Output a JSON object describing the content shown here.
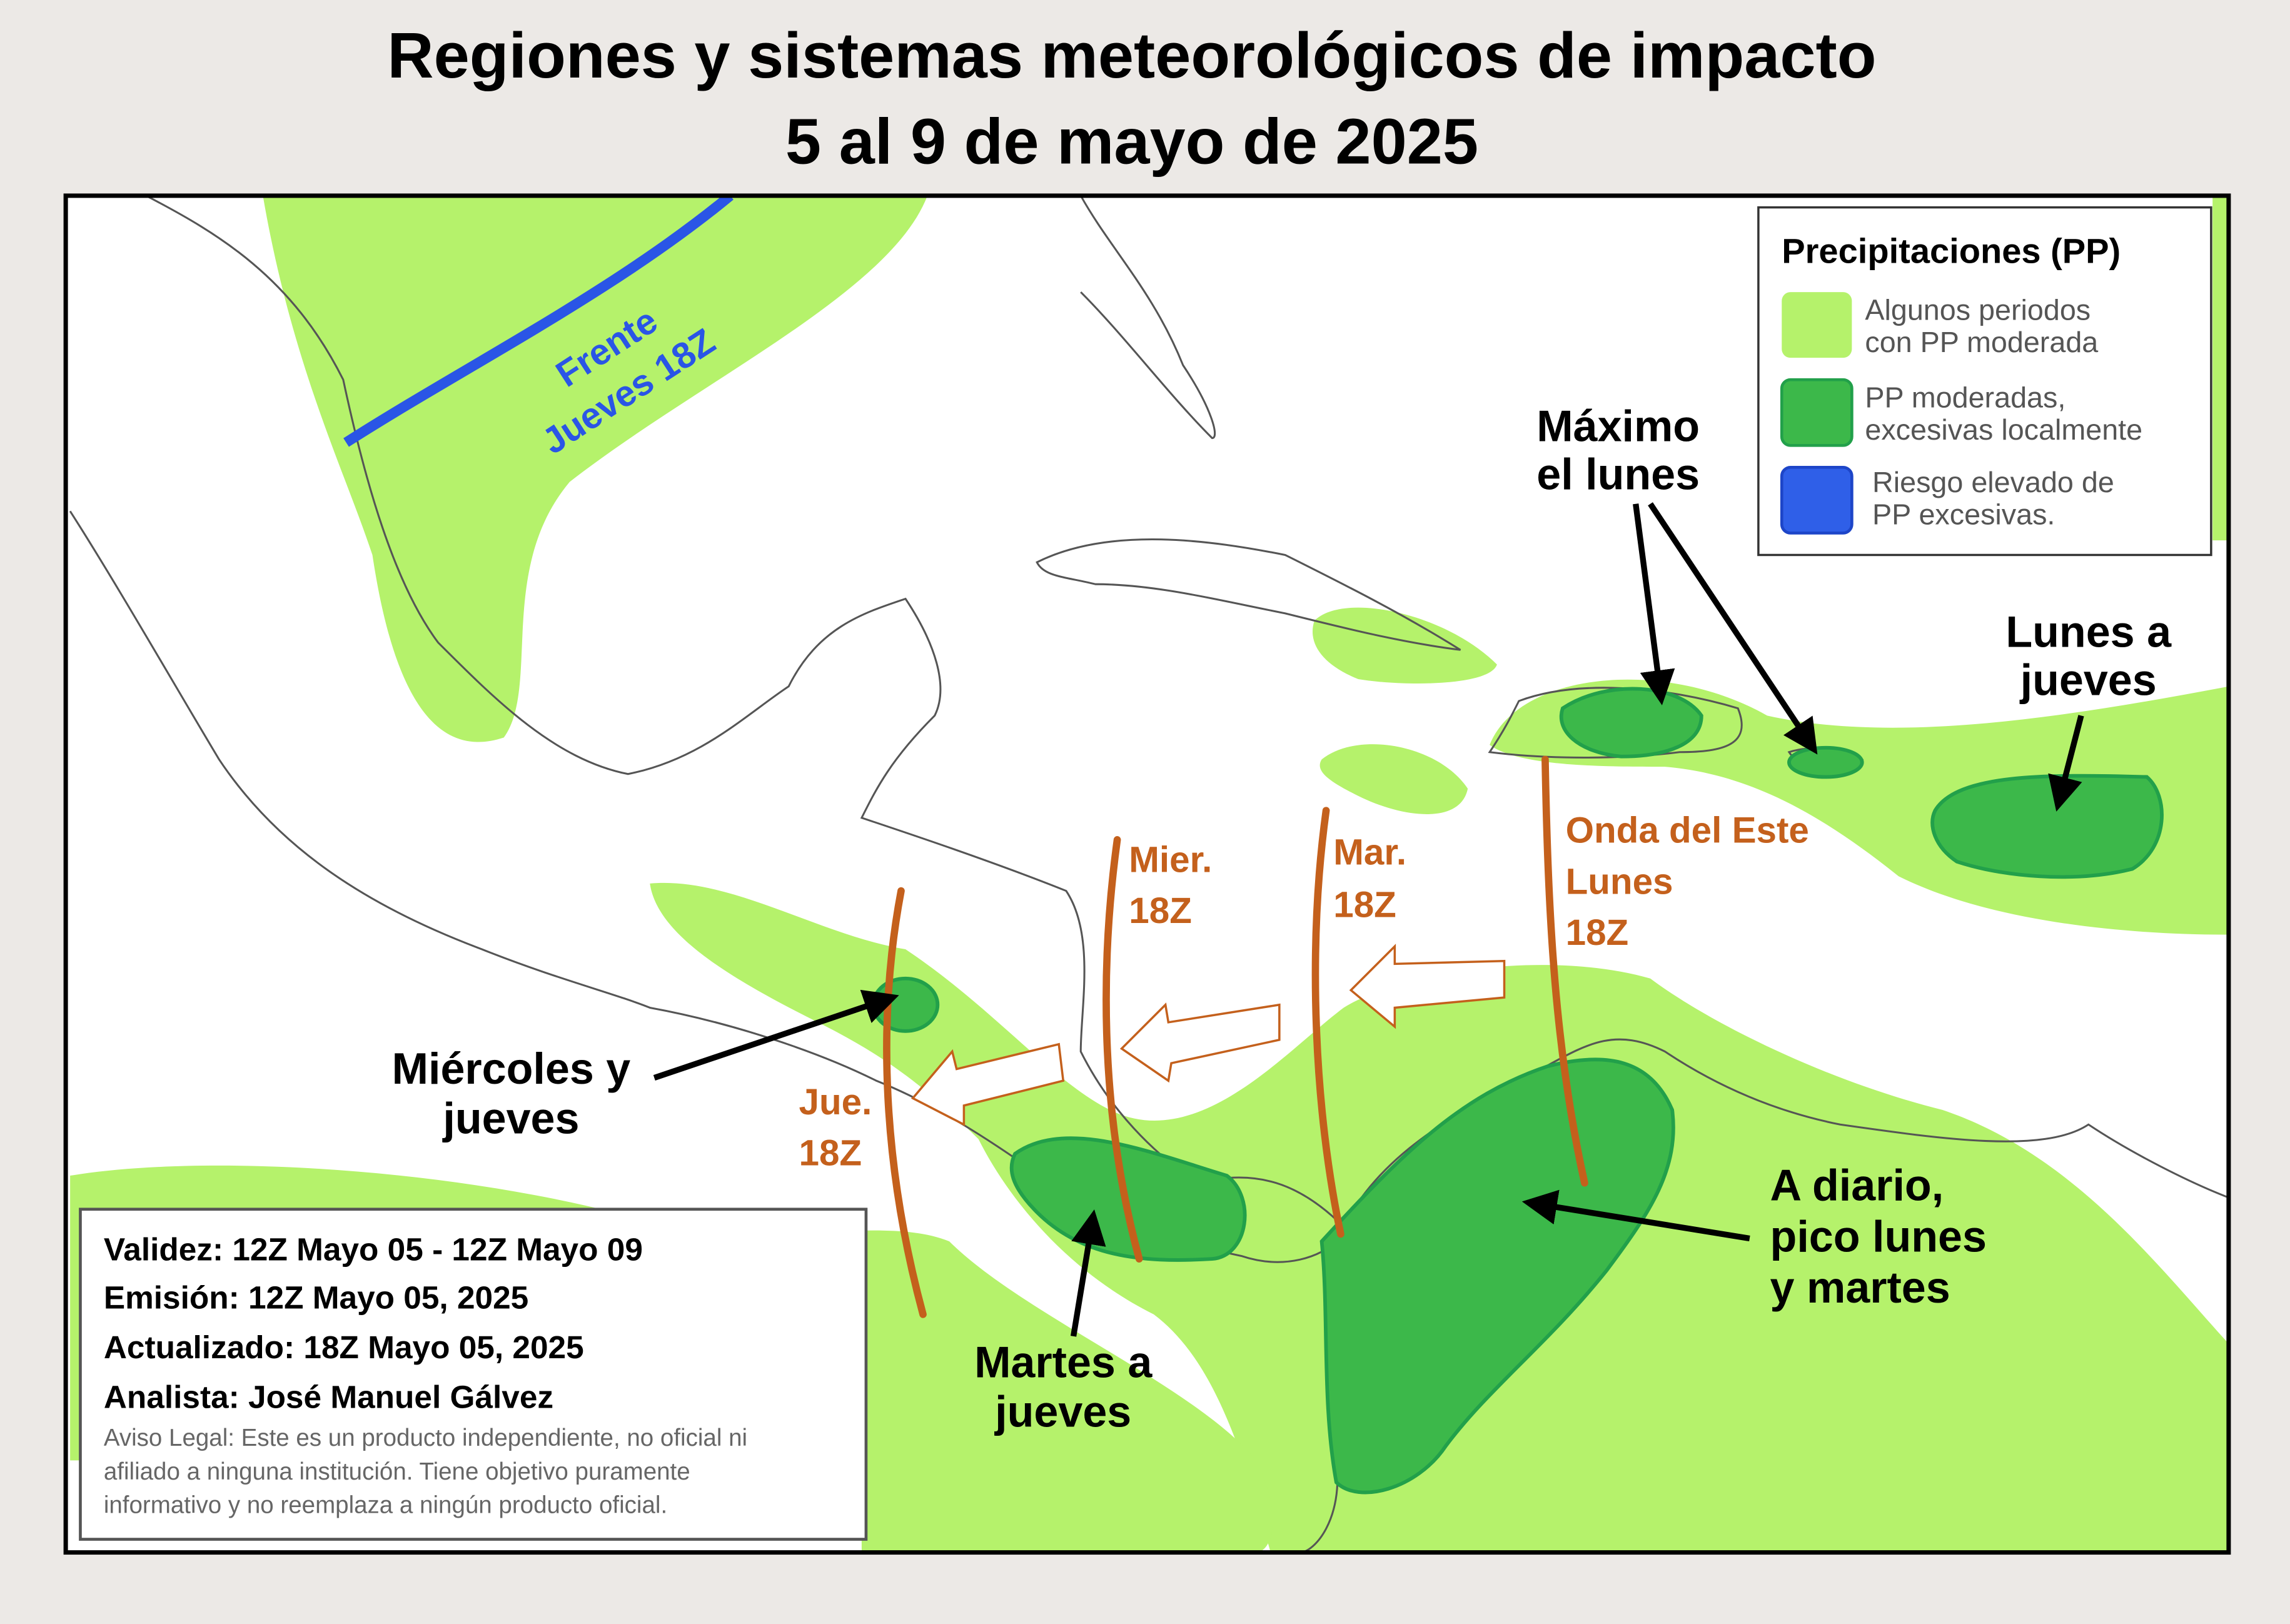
{
  "header": {
    "title": [
      "Regiones y sistemas meteorológicos de impacto",
      "5 al 9 de mayo de 2025"
    ]
  },
  "legend": {
    "title": "Precipitaciones (PP)",
    "items": [
      {
        "label": [
          "Algunos periodos",
          "con PP moderada"
        ]
      },
      {
        "label": [
          "PP moderadas,",
          "excesivas localmente"
        ]
      },
      {
        "label": [
          "Riesgo elevado de",
          "PP excesivas."
        ]
      }
    ]
  },
  "systems": {
    "front": [
      "Frente",
      "Jueves 18Z"
    ],
    "waves": [
      {
        "label": [
          "Onda del Este",
          "Lunes",
          "18Z"
        ]
      },
      {
        "label": [
          "Mar.",
          "18Z"
        ]
      },
      {
        "label": [
          "Mier.",
          "18Z"
        ]
      },
      {
        "label": [
          "Jue.",
          "18Z"
        ]
      }
    ]
  },
  "annotations": [
    {
      "label": [
        "Máximo",
        "el lunes"
      ]
    },
    {
      "label": [
        "Lunes a",
        "jueves"
      ]
    },
    {
      "label": [
        "Miércoles y",
        "jueves"
      ]
    },
    {
      "label": [
        "Martes a",
        "jueves"
      ]
    },
    {
      "label": [
        "A diario,",
        "pico lunes",
        "y martes"
      ]
    }
  ],
  "info": {
    "lines": [
      "Validez: 12Z Mayo 05 - 12Z Mayo 09",
      "Emisión: 12Z Mayo 05, 2025",
      "Actualizado: 18Z Mayo 05, 2025",
      "Analista: José Manuel Gálvez"
    ],
    "disclaimer": [
      "Aviso Legal: Este es un producto independiente, no oficial ni",
      "afiliado a ninguna institución. Tiene objetivo puramente",
      "informativo y no reemplaza a ningún producto oficial."
    ]
  }
}
